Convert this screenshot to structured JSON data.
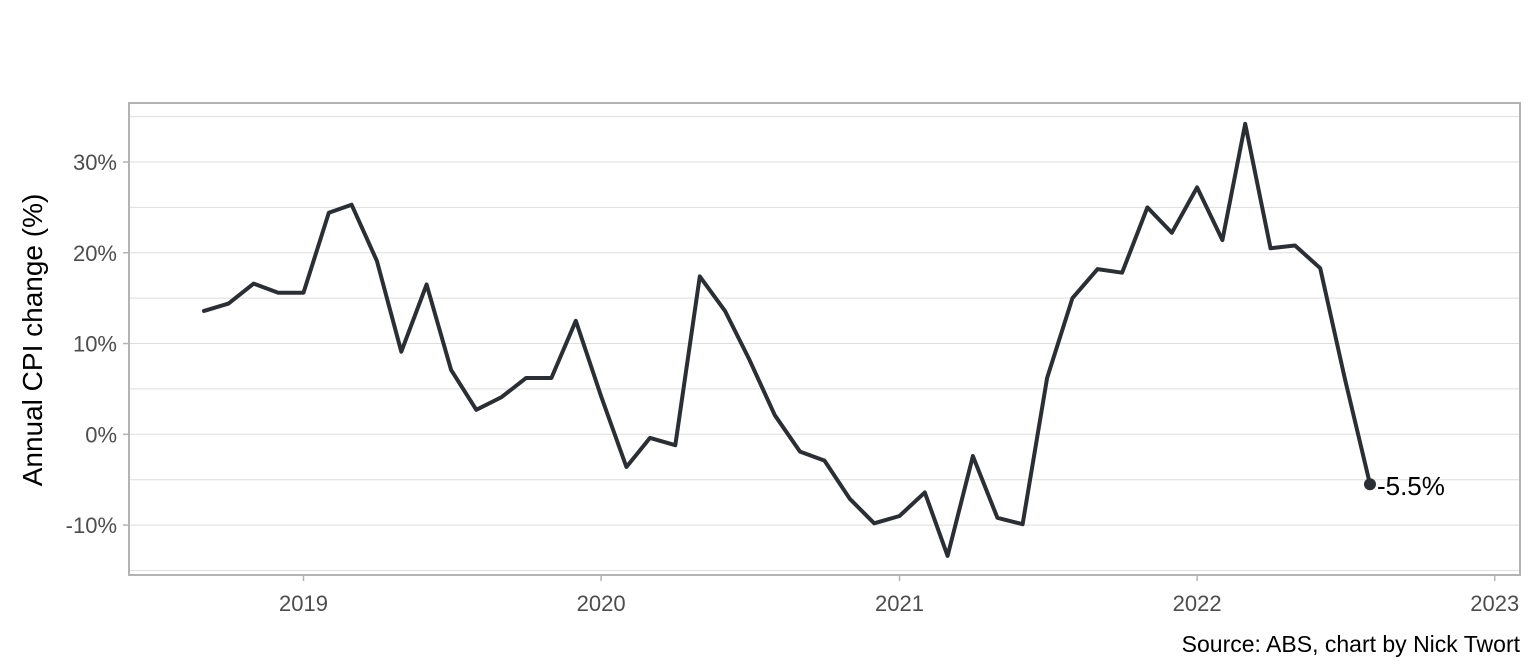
{
  "chart_data": {
    "type": "line",
    "title": "",
    "xlabel": "",
    "ylabel": "Annual CPI change (%)",
    "caption": "Source: ABS, chart by Nick Twort",
    "xlim": [
      "2018-06-01",
      "2023-02-01"
    ],
    "ylim": [
      -15.5,
      36.5
    ],
    "x_ticks": [
      {
        "date": "2019-01-01",
        "label": "2019"
      },
      {
        "date": "2020-01-01",
        "label": "2020"
      },
      {
        "date": "2021-01-01",
        "label": "2021"
      },
      {
        "date": "2022-01-01",
        "label": "2022"
      },
      {
        "date": "2023-01-01",
        "label": "2023"
      }
    ],
    "y_ticks": [
      {
        "value": -10,
        "label": "-10%"
      },
      {
        "value": 0,
        "label": "0%"
      },
      {
        "value": 10,
        "label": "10%"
      },
      {
        "value": 20,
        "label": "20%"
      },
      {
        "value": 30,
        "label": "30%"
      }
    ],
    "y_minor_ticks": [
      -15,
      -5,
      5,
      15,
      25,
      35
    ],
    "grid": true,
    "legend": "none",
    "series": [
      {
        "color": "#2b2e33",
        "x": [
          "2018-09-01",
          "2018-10-01",
          "2018-11-01",
          "2018-12-01",
          "2019-01-01",
          "2019-02-01",
          "2019-03-01",
          "2019-04-01",
          "2019-05-01",
          "2019-06-01",
          "2019-07-01",
          "2019-08-01",
          "2019-09-01",
          "2019-10-01",
          "2019-11-01",
          "2019-12-01",
          "2020-01-01",
          "2020-02-01",
          "2020-03-01",
          "2020-04-01",
          "2020-05-01",
          "2020-06-01",
          "2020-07-01",
          "2020-08-01",
          "2020-09-01",
          "2020-10-01",
          "2020-11-01",
          "2020-12-01",
          "2021-01-01",
          "2021-02-01",
          "2021-03-01",
          "2021-04-01",
          "2021-05-01",
          "2021-06-01",
          "2021-07-01",
          "2021-08-01",
          "2021-09-01",
          "2021-10-01",
          "2021-11-01",
          "2021-12-01",
          "2022-01-01",
          "2022-02-01",
          "2022-03-01",
          "2022-04-01",
          "2022-05-01",
          "2022-06-01",
          "2022-07-01",
          "2022-08-01"
        ],
        "values": [
          13.6,
          14.4,
          16.6,
          15.6,
          15.6,
          24.4,
          25.3,
          19.1,
          9.1,
          16.5,
          7.1,
          2.7,
          4.1,
          6.2,
          6.2,
          12.5,
          4.2,
          -3.6,
          -0.4,
          -1.2,
          17.4,
          13.6,
          8.2,
          2.1,
          -1.9,
          -2.9,
          -7.1,
          -9.8,
          -9.0,
          -6.4,
          -13.4,
          -2.4,
          -9.2,
          -9.9,
          6.2,
          15.0,
          18.2,
          17.8,
          25.0,
          22.2,
          27.2,
          21.4,
          34.2,
          20.5,
          20.8,
          18.3,
          6.2,
          -5.5
        ]
      }
    ],
    "end_label": {
      "text": "-5.5%",
      "date": "2022-08-01",
      "value": -5.5
    },
    "colors": {
      "line": "#2b2e33",
      "grid": "#dedede",
      "panel_border": "#b3b3b3",
      "tick_text": "#4d4d4d"
    }
  }
}
